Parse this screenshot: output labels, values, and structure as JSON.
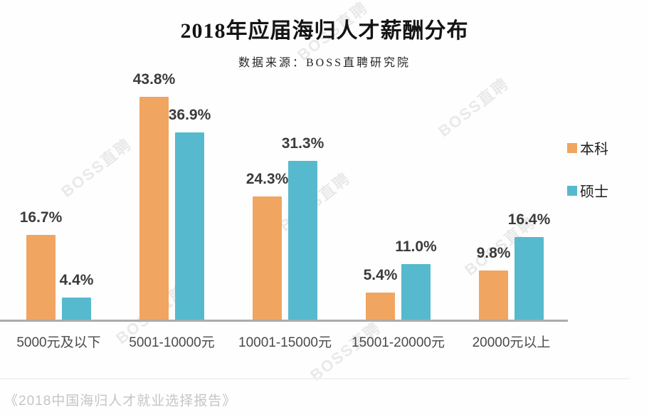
{
  "page": {
    "caption": "《2018中国海归人才就业选择报告》",
    "watermark_text": "BOSS直聘"
  },
  "colors": {
    "bachelor_orange": "#F0A561",
    "master_teal": "#57B9CD",
    "axis_line": "#ABABAB",
    "value_label": "#3B3B3B",
    "caption_gray": "#C5C5C5"
  },
  "chart_data": {
    "type": "bar",
    "title": "2018年应届海归人才薪酬分布",
    "subtitle": "数据来源：BOSS直聘研究院",
    "categories": [
      "5000元及以下",
      "5001-10000元",
      "10001-15000元",
      "15001-20000元",
      "20000元以上"
    ],
    "series": [
      {
        "name": "本科",
        "color": "#F0A561",
        "values": [
          16.7,
          43.8,
          24.3,
          5.4,
          9.8
        ]
      },
      {
        "name": "硕士",
        "color": "#57B9CD",
        "values": [
          4.4,
          36.9,
          31.3,
          11.0,
          16.4
        ]
      }
    ],
    "value_suffix": "%",
    "data_labels": true,
    "ylim": [
      0,
      50
    ],
    "grid": false,
    "legend_position": "right",
    "source_caption": "《2018中国海归人才就业选择报告》"
  }
}
